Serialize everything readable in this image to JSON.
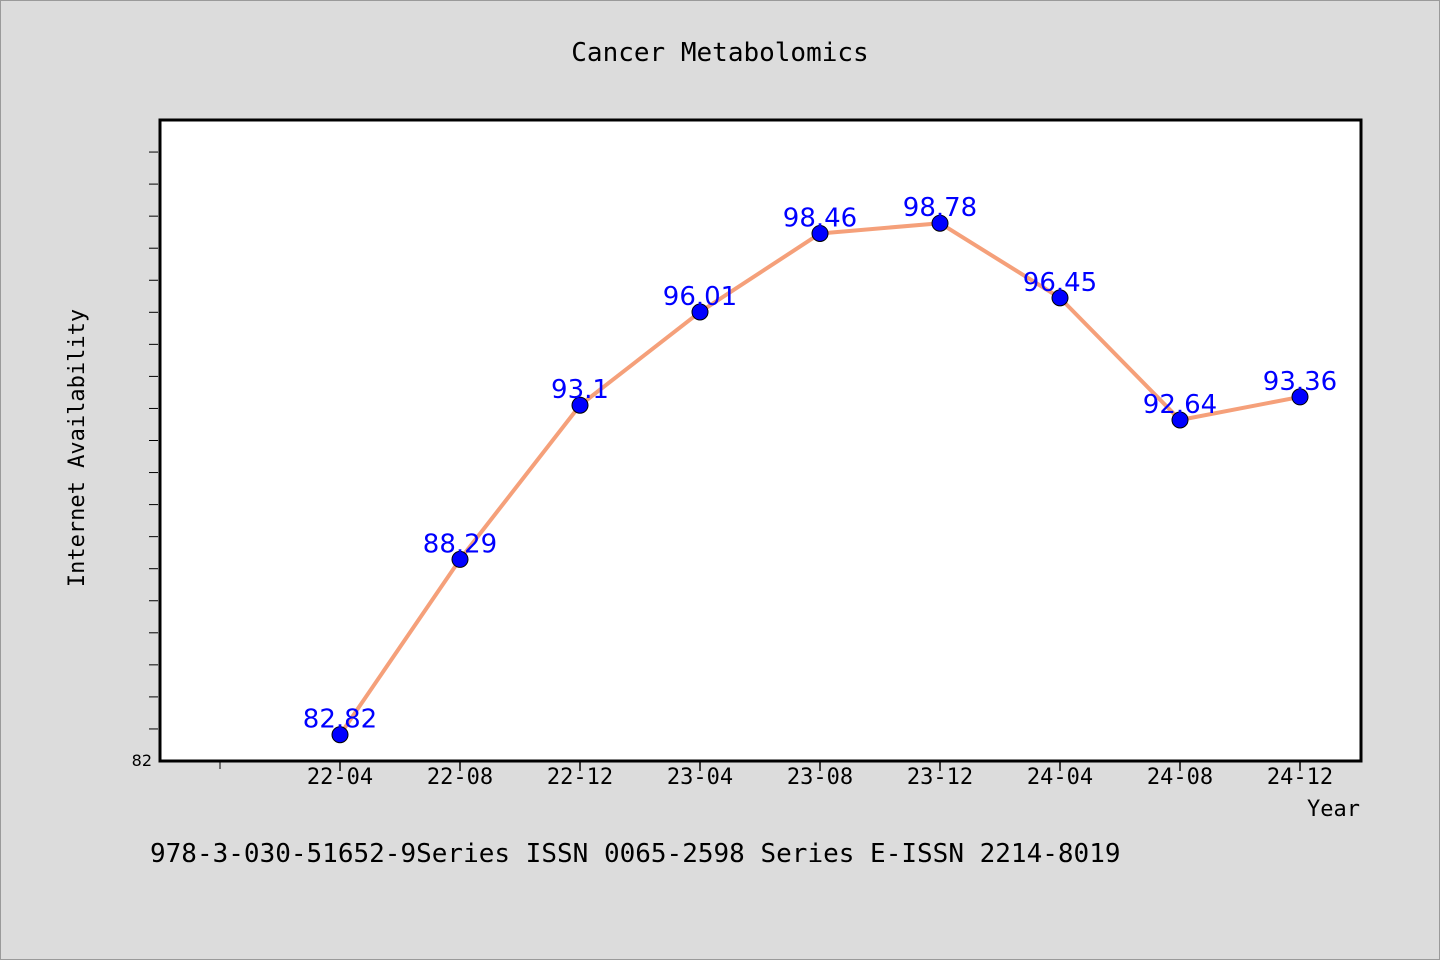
{
  "chart_data": {
    "type": "line",
    "title": "Cancer Metabolomics",
    "xlabel": "Year",
    "ylabel": "Internet Availability",
    "categories": [
      "22-04",
      "22-08",
      "22-12",
      "23-04",
      "23-08",
      "23-12",
      "24-04",
      "24-08",
      "24-12"
    ],
    "series": [
      {
        "values": [
          82.82,
          88.29,
          93.1,
          96.01,
          98.46,
          98.78,
          96.45,
          92.64,
          93.36
        ],
        "data_labels": [
          "82.82",
          "88.29",
          "93.1",
          "96.01",
          "98.46",
          "98.78",
          "96.45",
          "92.64",
          "93.36"
        ]
      }
    ],
    "ylim": [
      82,
      102
    ],
    "y_tick_labels": [
      "82"
    ],
    "grid": false,
    "line_color": "#f5a07a",
    "marker_color": "#0000ff",
    "label_color": "#0000ff"
  },
  "footer": {
    "text": "978-3-030-51652-9Series ISSN 0065-2598 Series E-ISSN 2214-8019"
  }
}
